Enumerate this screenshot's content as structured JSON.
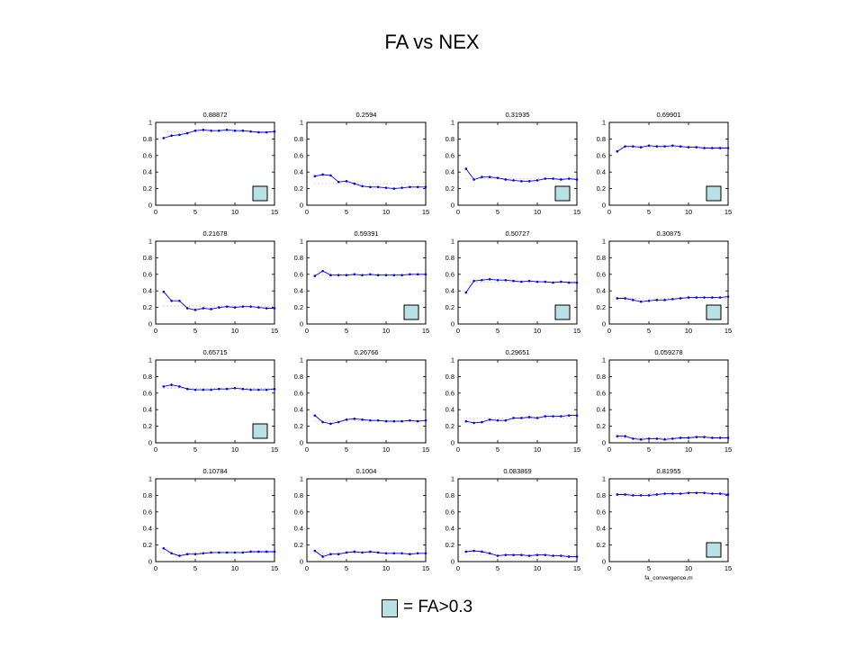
{
  "title": "FA vs NEX",
  "legend": {
    "label": "= FA>0.3",
    "swatch_color": "#b9e0e3"
  },
  "source_file": "fa_convergence.m",
  "colors": {
    "line": "#0000ff",
    "dotted": "#c8a040",
    "axis": "#000000"
  },
  "chart_data": [
    {
      "type": "line",
      "title": "0.88872",
      "xlim": [
        0,
        15
      ],
      "ylim": [
        0,
        1
      ],
      "marked": true,
      "x": [
        1,
        2,
        3,
        4,
        5,
        6,
        7,
        8,
        9,
        10,
        11,
        12,
        13,
        14,
        15
      ],
      "y": [
        0.81,
        0.84,
        0.85,
        0.87,
        0.9,
        0.91,
        0.9,
        0.9,
        0.91,
        0.9,
        0.9,
        0.89,
        0.88,
        0.88,
        0.89
      ],
      "dotted_y": 0.88872
    },
    {
      "type": "line",
      "title": "0.2594",
      "xlim": [
        0,
        15
      ],
      "ylim": [
        0,
        1
      ],
      "marked": false,
      "x": [
        1,
        2,
        3,
        4,
        5,
        6,
        7,
        8,
        9,
        10,
        11,
        12,
        13,
        14,
        15
      ],
      "y": [
        0.35,
        0.37,
        0.36,
        0.28,
        0.29,
        0.26,
        0.23,
        0.22,
        0.22,
        0.21,
        0.2,
        0.21,
        0.22,
        0.22,
        0.22
      ],
      "dotted_y": 0.2594
    },
    {
      "type": "line",
      "title": "0.31935",
      "xlim": [
        0,
        15
      ],
      "ylim": [
        0,
        1
      ],
      "marked": true,
      "x": [
        1,
        2,
        3,
        4,
        5,
        6,
        7,
        8,
        9,
        10,
        11,
        12,
        13,
        14,
        15
      ],
      "y": [
        0.44,
        0.31,
        0.34,
        0.34,
        0.33,
        0.31,
        0.3,
        0.29,
        0.29,
        0.3,
        0.32,
        0.32,
        0.31,
        0.32,
        0.31
      ],
      "dotted_y": 0.31935
    },
    {
      "type": "line",
      "title": "0.69901",
      "xlim": [
        0,
        15
      ],
      "ylim": [
        0,
        1
      ],
      "marked": true,
      "x": [
        1,
        2,
        3,
        4,
        5,
        6,
        7,
        8,
        9,
        10,
        11,
        12,
        13,
        14,
        15
      ],
      "y": [
        0.65,
        0.71,
        0.71,
        0.7,
        0.72,
        0.71,
        0.71,
        0.72,
        0.71,
        0.7,
        0.7,
        0.69,
        0.69,
        0.69,
        0.69
      ],
      "dotted_y": 0.69901
    },
    {
      "type": "line",
      "title": "0.21678",
      "xlim": [
        0,
        15
      ],
      "ylim": [
        0,
        1
      ],
      "marked": false,
      "x": [
        1,
        2,
        3,
        4,
        5,
        6,
        7,
        8,
        9,
        10,
        11,
        12,
        13,
        14,
        15
      ],
      "y": [
        0.39,
        0.28,
        0.28,
        0.19,
        0.17,
        0.19,
        0.18,
        0.2,
        0.21,
        0.2,
        0.21,
        0.21,
        0.2,
        0.19,
        0.19
      ],
      "dotted_y": 0.21678
    },
    {
      "type": "line",
      "title": "0.59391",
      "xlim": [
        0,
        15
      ],
      "ylim": [
        0,
        1
      ],
      "marked": true,
      "x": [
        1,
        2,
        3,
        4,
        5,
        6,
        7,
        8,
        9,
        10,
        11,
        12,
        13,
        14,
        15
      ],
      "y": [
        0.58,
        0.64,
        0.59,
        0.59,
        0.59,
        0.6,
        0.59,
        0.6,
        0.59,
        0.59,
        0.59,
        0.59,
        0.6,
        0.6,
        0.6
      ],
      "dotted_y": 0.59391
    },
    {
      "type": "line",
      "title": "0.50727",
      "xlim": [
        0,
        15
      ],
      "ylim": [
        0,
        1
      ],
      "marked": true,
      "x": [
        1,
        2,
        3,
        4,
        5,
        6,
        7,
        8,
        9,
        10,
        11,
        12,
        13,
        14,
        15
      ],
      "y": [
        0.38,
        0.52,
        0.53,
        0.54,
        0.53,
        0.53,
        0.52,
        0.51,
        0.52,
        0.51,
        0.51,
        0.5,
        0.51,
        0.5,
        0.5
      ],
      "dotted_y": 0.50727
    },
    {
      "type": "line",
      "title": "0.30875",
      "xlim": [
        0,
        15
      ],
      "ylim": [
        0,
        1
      ],
      "marked": true,
      "x": [
        1,
        2,
        3,
        4,
        5,
        6,
        7,
        8,
        9,
        10,
        11,
        12,
        13,
        14,
        15
      ],
      "y": [
        0.31,
        0.31,
        0.29,
        0.27,
        0.28,
        0.29,
        0.29,
        0.3,
        0.31,
        0.32,
        0.32,
        0.32,
        0.32,
        0.32,
        0.33
      ],
      "dotted_y": 0.30875
    },
    {
      "type": "line",
      "title": "0.65715",
      "xlim": [
        0,
        15
      ],
      "ylim": [
        0,
        1
      ],
      "marked": true,
      "x": [
        1,
        2,
        3,
        4,
        5,
        6,
        7,
        8,
        9,
        10,
        11,
        12,
        13,
        14,
        15
      ],
      "y": [
        0.68,
        0.7,
        0.68,
        0.65,
        0.64,
        0.64,
        0.64,
        0.65,
        0.65,
        0.66,
        0.65,
        0.64,
        0.64,
        0.64,
        0.65
      ],
      "dotted_y": 0.65715
    },
    {
      "type": "line",
      "title": "0.26766",
      "xlim": [
        0,
        15
      ],
      "ylim": [
        0,
        1
      ],
      "marked": false,
      "x": [
        1,
        2,
        3,
        4,
        5,
        6,
        7,
        8,
        9,
        10,
        11,
        12,
        13,
        14,
        15
      ],
      "y": [
        0.33,
        0.25,
        0.23,
        0.25,
        0.28,
        0.29,
        0.28,
        0.27,
        0.27,
        0.26,
        0.26,
        0.26,
        0.27,
        0.26,
        0.27
      ],
      "dotted_y": 0.26766
    },
    {
      "type": "line",
      "title": "0.29651",
      "xlim": [
        0,
        15
      ],
      "ylim": [
        0,
        1
      ],
      "marked": false,
      "x": [
        1,
        2,
        3,
        4,
        5,
        6,
        7,
        8,
        9,
        10,
        11,
        12,
        13,
        14,
        15
      ],
      "y": [
        0.26,
        0.24,
        0.25,
        0.28,
        0.27,
        0.27,
        0.3,
        0.3,
        0.31,
        0.3,
        0.32,
        0.32,
        0.32,
        0.33,
        0.33
      ],
      "dotted_y": 0.29651
    },
    {
      "type": "line",
      "title": "0.059278",
      "xlim": [
        0,
        15
      ],
      "ylim": [
        0,
        1
      ],
      "marked": false,
      "x": [
        1,
        2,
        3,
        4,
        5,
        6,
        7,
        8,
        9,
        10,
        11,
        12,
        13,
        14,
        15
      ],
      "y": [
        0.08,
        0.08,
        0.05,
        0.04,
        0.05,
        0.05,
        0.04,
        0.05,
        0.06,
        0.06,
        0.07,
        0.07,
        0.06,
        0.06,
        0.06
      ],
      "dotted_y": 0.059278
    },
    {
      "type": "line",
      "title": "0.10784",
      "xlim": [
        0,
        15
      ],
      "ylim": [
        0,
        1
      ],
      "marked": false,
      "x": [
        1,
        2,
        3,
        4,
        5,
        6,
        7,
        8,
        9,
        10,
        11,
        12,
        13,
        14,
        15
      ],
      "y": [
        0.16,
        0.1,
        0.07,
        0.09,
        0.09,
        0.1,
        0.11,
        0.11,
        0.11,
        0.11,
        0.11,
        0.12,
        0.12,
        0.12,
        0.12
      ],
      "dotted_y": 0.10784
    },
    {
      "type": "line",
      "title": "0.1004",
      "xlim": [
        0,
        15
      ],
      "ylim": [
        0,
        1
      ],
      "marked": false,
      "x": [
        1,
        2,
        3,
        4,
        5,
        6,
        7,
        8,
        9,
        10,
        11,
        12,
        13,
        14,
        15
      ],
      "y": [
        0.13,
        0.06,
        0.09,
        0.09,
        0.11,
        0.12,
        0.11,
        0.12,
        0.11,
        0.1,
        0.1,
        0.1,
        0.09,
        0.1,
        0.1
      ],
      "dotted_y": 0.1004
    },
    {
      "type": "line",
      "title": "0.083869",
      "xlim": [
        0,
        15
      ],
      "ylim": [
        0,
        1
      ],
      "marked": false,
      "x": [
        1,
        2,
        3,
        4,
        5,
        6,
        7,
        8,
        9,
        10,
        11,
        12,
        13,
        14,
        15
      ],
      "y": [
        0.12,
        0.13,
        0.12,
        0.1,
        0.07,
        0.08,
        0.08,
        0.08,
        0.07,
        0.08,
        0.08,
        0.07,
        0.07,
        0.06,
        0.06
      ],
      "dotted_y": 0.083869
    },
    {
      "type": "line",
      "title": "0.81955",
      "xlim": [
        0,
        15
      ],
      "ylim": [
        0,
        1
      ],
      "marked": true,
      "xlabel": "fa_convergence.m",
      "x": [
        1,
        2,
        3,
        4,
        5,
        6,
        7,
        8,
        9,
        10,
        11,
        12,
        13,
        14,
        15
      ],
      "y": [
        0.81,
        0.81,
        0.8,
        0.8,
        0.8,
        0.81,
        0.82,
        0.82,
        0.82,
        0.83,
        0.83,
        0.83,
        0.82,
        0.82,
        0.81
      ],
      "dotted_y": 0.81955
    }
  ]
}
